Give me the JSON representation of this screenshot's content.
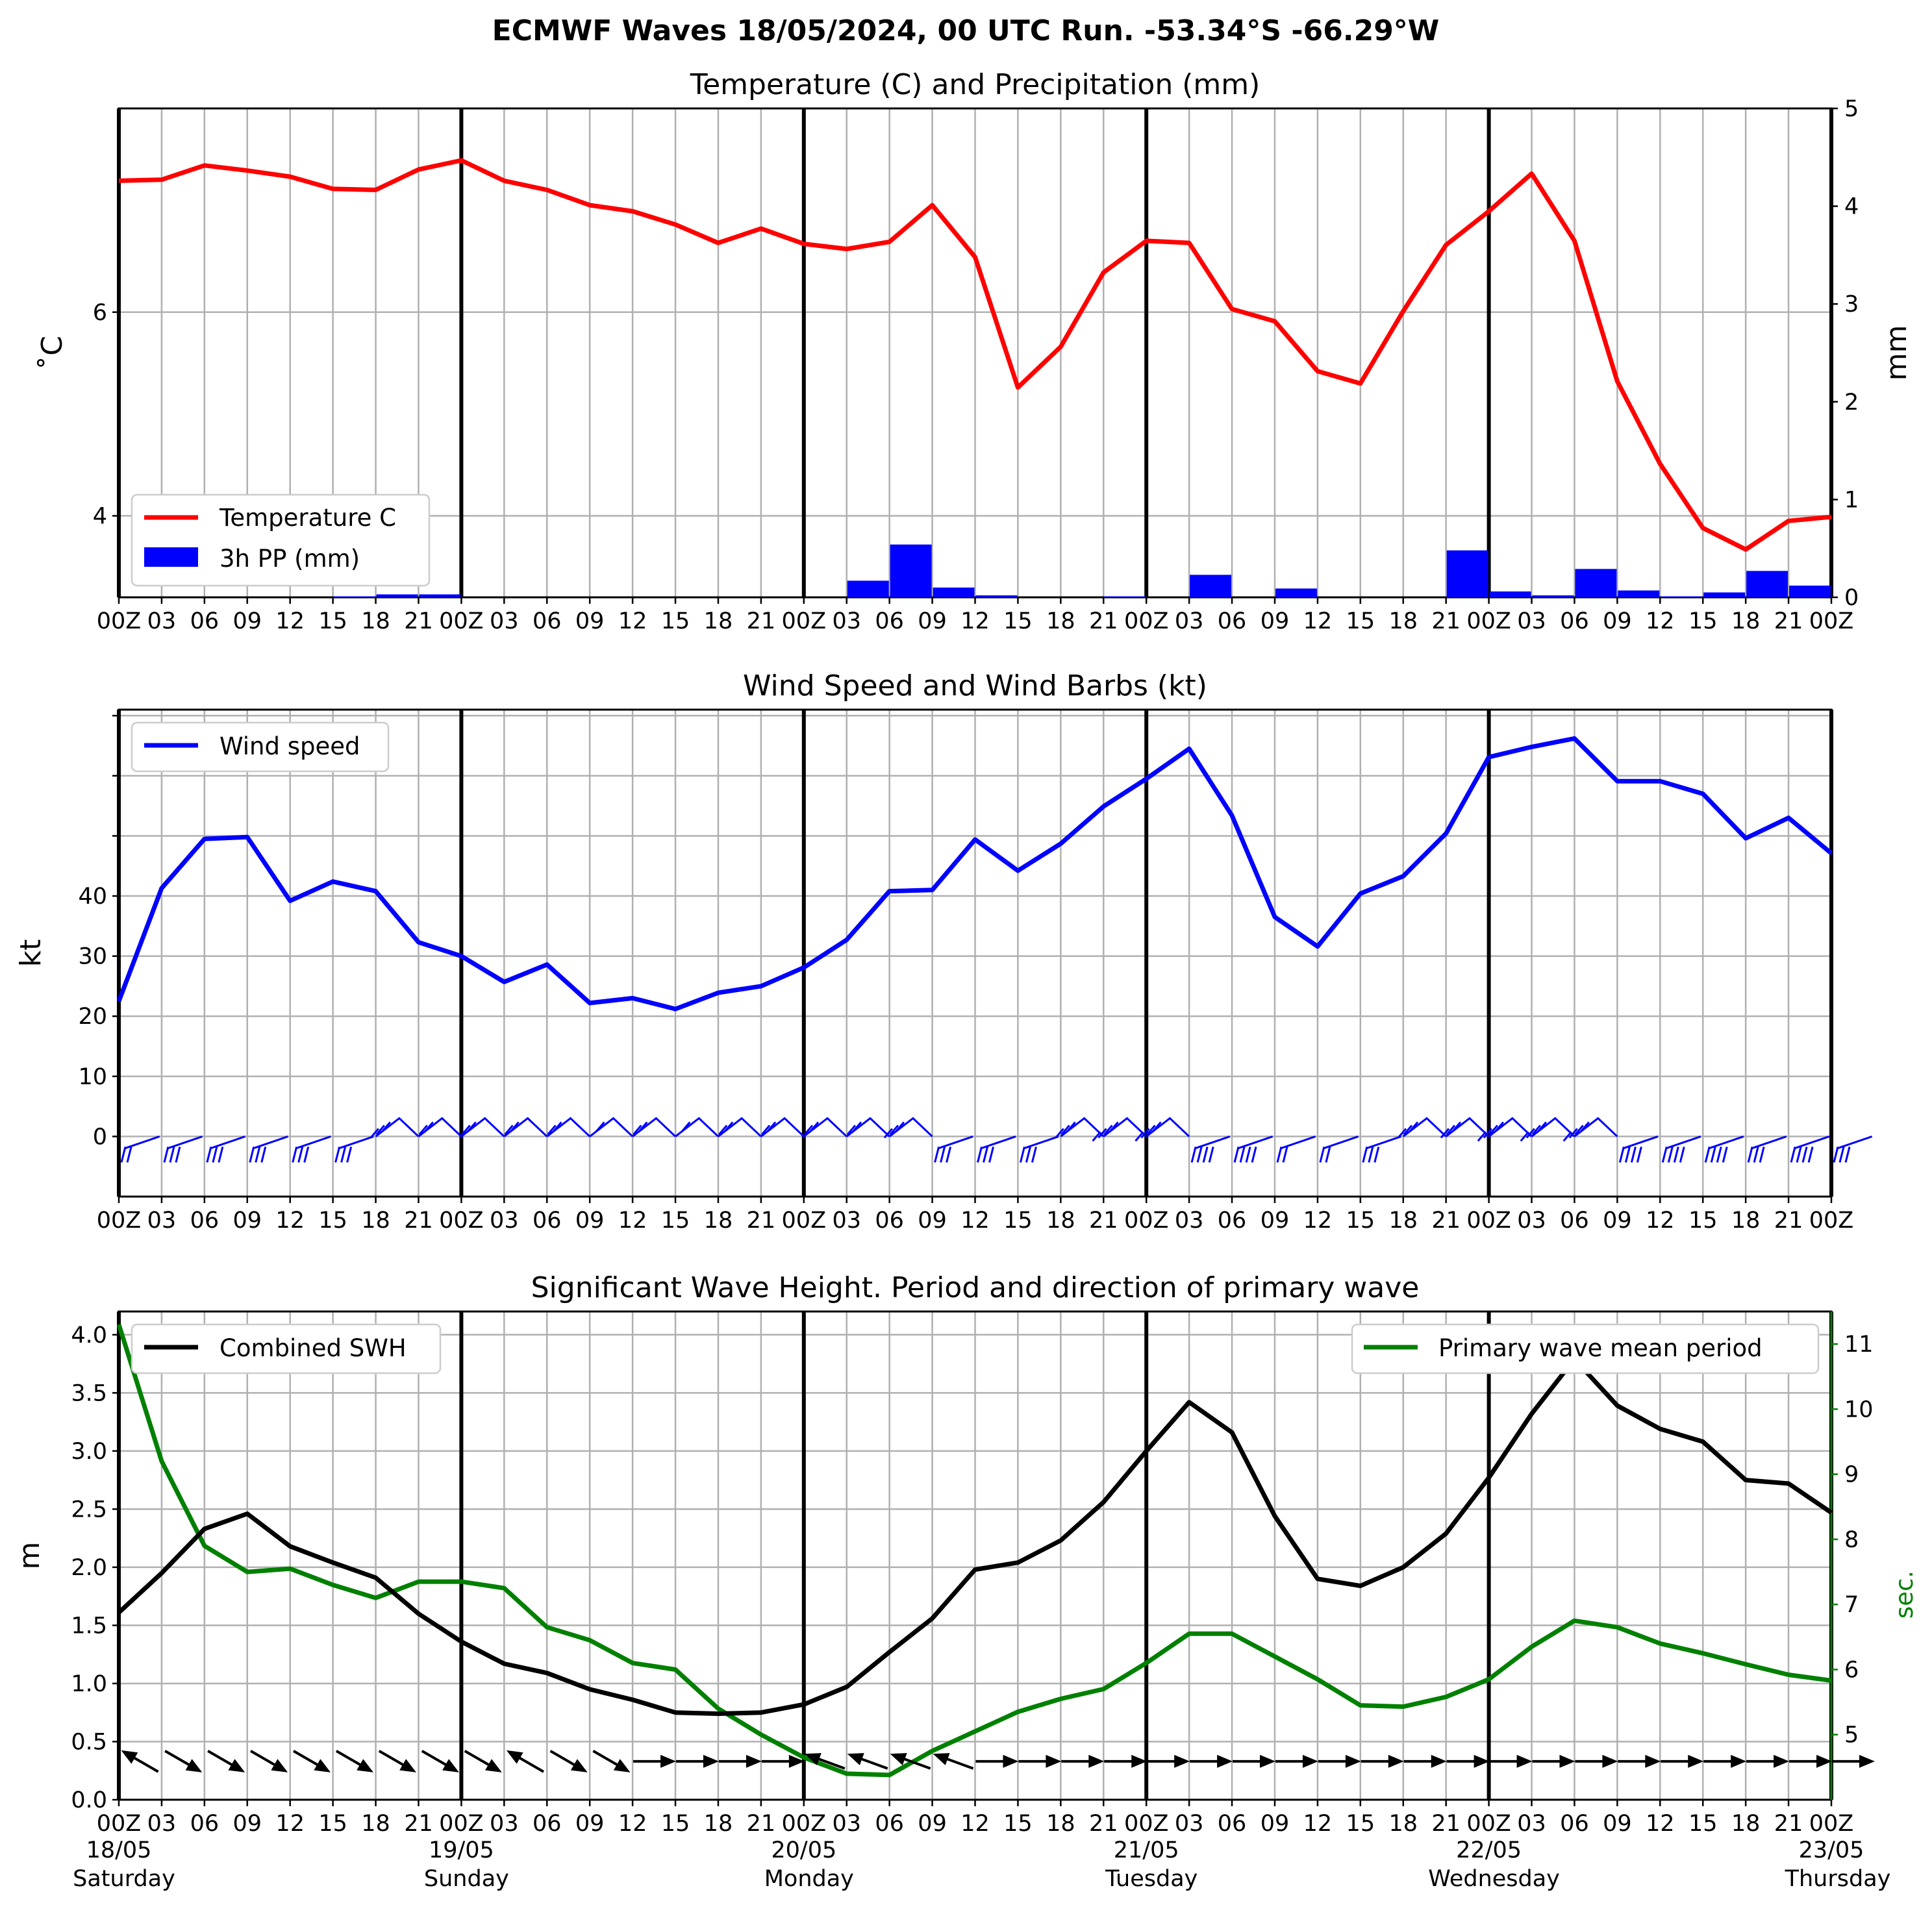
{
  "title": "ECMWF Waves 18/05/2024, 00 UTC Run. -53.34°S -66.29°W",
  "colors": {
    "temperature": "#ff0000",
    "precip": "#0000ff",
    "wind": "#0000ff",
    "swh": "#000000",
    "period": "#008000",
    "grid": "#b0b0b0"
  },
  "x_tick_labels": [
    "00Z",
    "03",
    "06",
    "09",
    "12",
    "15",
    "18",
    "21",
    "00Z",
    "03",
    "06",
    "09",
    "12",
    "15",
    "18",
    "21",
    "00Z",
    "03",
    "06",
    "09",
    "12",
    "15",
    "18",
    "21",
    "00Z",
    "03",
    "06",
    "09",
    "12",
    "15",
    "18",
    "21",
    "00Z",
    "03",
    "06",
    "09",
    "12",
    "15",
    "18",
    "21",
    "00Z"
  ],
  "day_labels": [
    {
      "date": "18/05",
      "day": "Saturday"
    },
    {
      "date": "19/05",
      "day": "Sunday"
    },
    {
      "date": "20/05",
      "day": "Monday"
    },
    {
      "date": "21/05",
      "day": "Tuesday"
    },
    {
      "date": "22/05",
      "day": "Wednesday"
    },
    {
      "date": "23/05",
      "day": "Thursday"
    }
  ],
  "chart_data": [
    {
      "type": "line",
      "title": "Temperature (C) and Precipitation (mm)",
      "ylabel": "˚C",
      "ylabel_right": "mm",
      "x_hours_step": 3,
      "ylim": [
        3.2,
        8.0
      ],
      "ylim_right": [
        0,
        5
      ],
      "yticks": [
        4,
        6
      ],
      "yticks_right": [
        0,
        1,
        2,
        3,
        4,
        5
      ],
      "grid": true,
      "legend_position": "lower-left",
      "series": [
        {
          "name": "Temperature C",
          "type": "line",
          "values": [
            7.29,
            7.3,
            7.44,
            7.39,
            7.33,
            7.21,
            7.2,
            7.4,
            7.49,
            7.29,
            7.2,
            7.05,
            6.99,
            6.86,
            6.68,
            6.82,
            6.67,
            6.62,
            6.69,
            7.05,
            6.54,
            5.26,
            5.66,
            6.39,
            6.7,
            6.68,
            6.03,
            5.91,
            5.42,
            5.3,
            6.01,
            6.66,
            6.99,
            7.36,
            6.7,
            5.32,
            4.51,
            3.88,
            3.67,
            3.95,
            3.99
          ]
        },
        {
          "name": "3h PP (mm)",
          "type": "bar",
          "values": [
            0,
            0,
            0,
            0,
            0,
            0.01,
            0.03,
            0.03,
            0,
            0,
            0,
            0,
            0,
            0,
            0,
            0,
            0,
            0.17,
            0.54,
            0.1,
            0.02,
            0,
            0,
            0.01,
            0,
            0.23,
            0,
            0.09,
            0,
            0,
            0,
            0.48,
            0.06,
            0.02,
            0.29,
            0.07,
            0.01,
            0.05,
            0.27,
            0.12,
            0
          ]
        }
      ]
    },
    {
      "type": "line",
      "title": "Wind Speed and Wind Barbs (kt)",
      "ylabel": "kt",
      "x_hours_step": 3,
      "ylim": [
        -10,
        71
      ],
      "yticks": [
        0,
        10,
        20,
        30,
        40
      ],
      "grid": true,
      "legend_position": "upper-left",
      "series": [
        {
          "name": "Wind speed",
          "type": "line",
          "values": [
            22.5,
            41.3,
            49.5,
            49.8,
            39.2,
            42.4,
            40.8,
            32.3,
            30.0,
            25.7,
            28.6,
            22.2,
            23.0,
            21.2,
            23.9,
            25.0,
            28.1,
            32.7,
            40.8,
            41.0,
            49.4,
            44.2,
            48.7,
            54.9,
            59.5,
            64.5,
            53.4,
            36.5,
            31.6,
            40.4,
            43.3,
            50.4,
            63.1,
            64.8,
            66.2,
            59.1,
            59.1,
            57.0,
            49.6,
            53.0,
            47.1
          ]
        },
        {
          "name": "wind barbs",
          "type": "barbs",
          "values": [
            "south-west",
            "south-west",
            "south-west",
            "south-west",
            "south-west",
            "south-west",
            "west",
            "west",
            "west",
            "west",
            "west",
            "west",
            "west",
            "west",
            "west",
            "west",
            "west",
            "west",
            "west",
            "south-west",
            "south-west",
            "south-west",
            "west",
            "west",
            "west",
            "south-west",
            "south-west",
            "south-west",
            "south-west",
            "south-west",
            "west",
            "west",
            "west",
            "west",
            "west",
            "south-west",
            "south-west",
            "south-west",
            "south-west",
            "south-west",
            "south-west"
          ]
        }
      ]
    },
    {
      "type": "line",
      "title": "Significant Wave Height. Period and direction of primary wave",
      "ylabel": "m",
      "ylabel_right": "sec.",
      "x_hours_step": 3,
      "ylim": [
        0.0,
        4.2
      ],
      "ylim_right": [
        4.0,
        11.5
      ],
      "yticks": [
        0.0,
        0.5,
        1.0,
        1.5,
        2.0,
        2.5,
        3.0,
        3.5,
        4.0
      ],
      "yticks_right": [
        5,
        6,
        7,
        8,
        9,
        10,
        11
      ],
      "grid": true,
      "series": [
        {
          "name": "Combined SWH",
          "type": "line",
          "legend_position": "upper-left",
          "values": [
            1.61,
            1.95,
            2.33,
            2.46,
            2.18,
            2.04,
            1.91,
            1.6,
            1.36,
            1.17,
            1.09,
            0.95,
            0.86,
            0.75,
            0.74,
            0.75,
            0.82,
            0.97,
            1.27,
            1.56,
            1.98,
            2.04,
            2.23,
            2.56,
            3.0,
            3.42,
            3.16,
            2.44,
            1.9,
            1.84,
            2.0,
            2.29,
            2.77,
            3.32,
            3.79,
            3.39,
            3.19,
            3.08,
            2.75,
            2.72,
            2.47
          ]
        },
        {
          "name": "Primary wave mean period",
          "type": "line",
          "legend_position": "upper-right",
          "values": [
            11.3,
            9.2,
            7.9,
            7.5,
            7.55,
            7.3,
            7.1,
            7.35,
            7.35,
            7.25,
            6.65,
            6.45,
            6.1,
            6.0,
            5.4,
            5.0,
            4.65,
            4.4,
            4.38,
            4.75,
            5.05,
            5.35,
            5.55,
            5.7,
            6.1,
            6.55,
            6.55,
            6.2,
            5.85,
            5.45,
            5.43,
            5.58,
            5.85,
            6.35,
            6.75,
            6.65,
            6.4,
            6.25,
            6.08,
            5.92,
            5.83
          ]
        },
        {
          "name": "primary wave direction",
          "type": "arrows",
          "values": [
            120,
            300,
            300,
            300,
            300,
            300,
            300,
            300,
            300,
            120,
            300,
            300,
            270,
            270,
            270,
            270,
            110,
            110,
            110,
            110,
            270,
            270,
            270,
            270,
            270,
            270,
            270,
            270,
            270,
            270,
            270,
            270,
            270,
            270,
            270,
            270,
            270,
            270,
            270,
            270,
            270
          ]
        }
      ]
    }
  ]
}
